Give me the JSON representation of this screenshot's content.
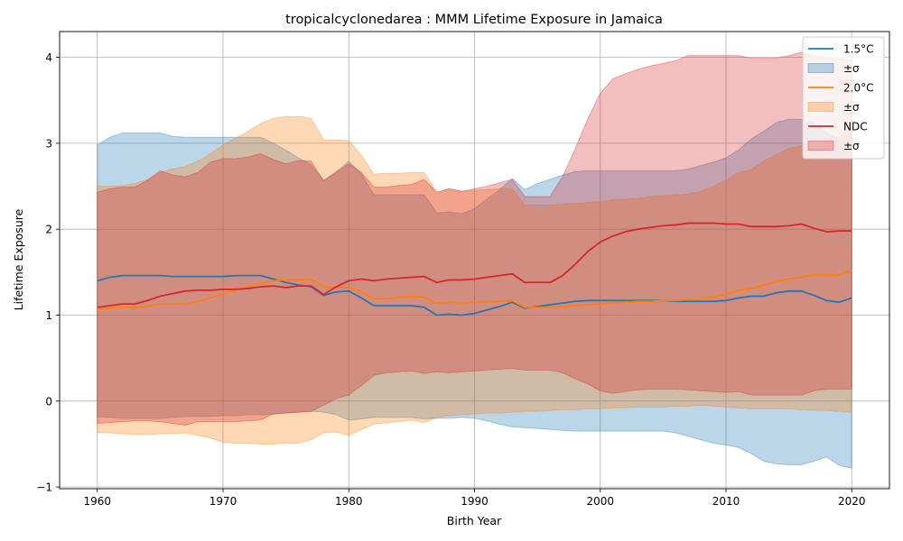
{
  "chart_data": {
    "type": "line",
    "title": "tropicalcyclonedarea : MMM Lifetime Exposure in Jamaica",
    "xlabel": "Birth Year",
    "ylabel": "Lifetime Exposure",
    "xlim": [
      1957,
      2023
    ],
    "ylim": [
      -1.02,
      4.3
    ],
    "xticks": [
      1960,
      1970,
      1980,
      1990,
      2000,
      2010,
      2020
    ],
    "yticks": [
      -1,
      0,
      1,
      2,
      3,
      4
    ],
    "grid": true,
    "legend_position": "top-right",
    "x": [
      1960,
      1961,
      1962,
      1963,
      1964,
      1965,
      1966,
      1967,
      1968,
      1969,
      1970,
      1971,
      1972,
      1973,
      1974,
      1975,
      1976,
      1977,
      1978,
      1979,
      1980,
      1981,
      1982,
      1983,
      1984,
      1985,
      1986,
      1987,
      1988,
      1989,
      1990,
      1991,
      1992,
      1993,
      1994,
      1995,
      1996,
      1997,
      1998,
      1999,
      2000,
      2001,
      2002,
      2003,
      2004,
      2005,
      2006,
      2007,
      2008,
      2009,
      2010,
      2011,
      2012,
      2013,
      2014,
      2015,
      2016,
      2017,
      2018,
      2019,
      2020
    ],
    "series": [
      {
        "name": "1.5°C",
        "band_label": "±σ",
        "color": "#1f77b4",
        "band_color": "#1f77b4",
        "values": [
          1.4,
          1.44,
          1.46,
          1.46,
          1.46,
          1.46,
          1.45,
          1.45,
          1.45,
          1.45,
          1.45,
          1.46,
          1.46,
          1.46,
          1.42,
          1.38,
          1.35,
          1.33,
          1.23,
          1.27,
          1.28,
          1.2,
          1.11,
          1.11,
          1.11,
          1.11,
          1.09,
          1.0,
          1.01,
          1.0,
          1.02,
          1.06,
          1.1,
          1.15,
          1.08,
          1.1,
          1.12,
          1.14,
          1.16,
          1.17,
          1.17,
          1.17,
          1.17,
          1.17,
          1.17,
          1.17,
          1.16,
          1.16,
          1.16,
          1.16,
          1.17,
          1.2,
          1.22,
          1.22,
          1.26,
          1.28,
          1.28,
          1.23,
          1.17,
          1.15,
          1.2
        ],
        "upper": [
          2.98,
          3.07,
          3.12,
          3.12,
          3.12,
          3.12,
          3.08,
          3.07,
          3.07,
          3.07,
          3.07,
          3.07,
          3.07,
          3.07,
          3.0,
          2.92,
          2.83,
          2.75,
          2.57,
          2.67,
          2.79,
          2.64,
          2.4,
          2.4,
          2.4,
          2.4,
          2.4,
          2.19,
          2.2,
          2.18,
          2.24,
          2.35,
          2.46,
          2.59,
          2.46,
          2.53,
          2.58,
          2.63,
          2.67,
          2.68,
          2.68,
          2.68,
          2.68,
          2.68,
          2.68,
          2.68,
          2.68,
          2.7,
          2.74,
          2.78,
          2.83,
          2.92,
          3.05,
          3.14,
          3.24,
          3.28,
          3.28,
          3.23,
          3.12,
          3.05,
          3.12
        ],
        "lower": [
          -0.18,
          -0.19,
          -0.2,
          -0.2,
          -0.2,
          -0.2,
          -0.19,
          -0.18,
          -0.18,
          -0.18,
          -0.17,
          -0.17,
          -0.16,
          -0.16,
          -0.15,
          -0.14,
          -0.13,
          -0.12,
          -0.13,
          -0.16,
          -0.22,
          -0.21,
          -0.19,
          -0.19,
          -0.19,
          -0.19,
          -0.21,
          -0.2,
          -0.2,
          -0.19,
          -0.2,
          -0.23,
          -0.27,
          -0.3,
          -0.31,
          -0.32,
          -0.33,
          -0.34,
          -0.35,
          -0.35,
          -0.35,
          -0.35,
          -0.35,
          -0.35,
          -0.35,
          -0.35,
          -0.37,
          -0.41,
          -0.45,
          -0.49,
          -0.51,
          -0.54,
          -0.61,
          -0.7,
          -0.73,
          -0.74,
          -0.74,
          -0.7,
          -0.65,
          -0.75,
          -0.78
        ]
      },
      {
        "name": "2.0°C",
        "band_label": "±σ",
        "color": "#ff7f0e",
        "band_color": "#ff7f0e",
        "values": [
          1.07,
          1.08,
          1.09,
          1.09,
          1.1,
          1.13,
          1.13,
          1.13,
          1.16,
          1.2,
          1.25,
          1.29,
          1.33,
          1.37,
          1.4,
          1.41,
          1.41,
          1.42,
          1.33,
          1.32,
          1.32,
          1.27,
          1.19,
          1.19,
          1.21,
          1.22,
          1.21,
          1.14,
          1.15,
          1.14,
          1.15,
          1.15,
          1.16,
          1.17,
          1.09,
          1.09,
          1.09,
          1.1,
          1.11,
          1.12,
          1.13,
          1.14,
          1.15,
          1.16,
          1.16,
          1.17,
          1.17,
          1.18,
          1.19,
          1.21,
          1.24,
          1.29,
          1.31,
          1.35,
          1.39,
          1.42,
          1.44,
          1.47,
          1.47,
          1.47,
          1.52
        ],
        "upper": [
          2.5,
          2.5,
          2.51,
          2.53,
          2.58,
          2.66,
          2.7,
          2.73,
          2.79,
          2.88,
          2.98,
          3.06,
          3.14,
          3.23,
          3.29,
          3.31,
          3.31,
          3.29,
          3.04,
          3.04,
          3.03,
          2.86,
          2.64,
          2.65,
          2.65,
          2.66,
          2.66,
          2.43,
          2.47,
          2.44,
          2.45,
          2.46,
          2.47,
          2.47,
          2.28,
          2.28,
          2.28,
          2.29,
          2.3,
          2.31,
          2.32,
          2.34,
          2.35,
          2.36,
          2.38,
          2.39,
          2.4,
          2.41,
          2.44,
          2.5,
          2.57,
          2.66,
          2.69,
          2.79,
          2.87,
          2.94,
          2.97,
          3.02,
          3.04,
          3.06,
          3.16
        ],
        "lower": [
          -0.37,
          -0.37,
          -0.38,
          -0.39,
          -0.39,
          -0.38,
          -0.38,
          -0.37,
          -0.4,
          -0.43,
          -0.48,
          -0.49,
          -0.49,
          -0.5,
          -0.5,
          -0.49,
          -0.49,
          -0.45,
          -0.37,
          -0.36,
          -0.4,
          -0.33,
          -0.27,
          -0.25,
          -0.24,
          -0.22,
          -0.25,
          -0.19,
          -0.17,
          -0.16,
          -0.15,
          -0.14,
          -0.14,
          -0.13,
          -0.12,
          -0.12,
          -0.11,
          -0.1,
          -0.1,
          -0.09,
          -0.09,
          -0.08,
          -0.08,
          -0.07,
          -0.07,
          -0.07,
          -0.06,
          -0.06,
          -0.05,
          -0.06,
          -0.07,
          -0.08,
          -0.09,
          -0.09,
          -0.09,
          -0.09,
          -0.1,
          -0.11,
          -0.11,
          -0.12,
          -0.13
        ]
      },
      {
        "name": "NDC",
        "band_label": "±σ",
        "color": "#d62728",
        "band_color": "#d62728",
        "values": [
          1.09,
          1.11,
          1.13,
          1.13,
          1.17,
          1.22,
          1.25,
          1.28,
          1.29,
          1.29,
          1.3,
          1.3,
          1.31,
          1.33,
          1.34,
          1.32,
          1.34,
          1.34,
          1.24,
          1.33,
          1.4,
          1.42,
          1.4,
          1.42,
          1.43,
          1.44,
          1.45,
          1.38,
          1.41,
          1.41,
          1.42,
          1.44,
          1.46,
          1.48,
          1.38,
          1.38,
          1.38,
          1.46,
          1.59,
          1.74,
          1.85,
          1.92,
          1.97,
          2.0,
          2.02,
          2.04,
          2.05,
          2.07,
          2.07,
          2.07,
          2.06,
          2.06,
          2.03,
          2.03,
          2.03,
          2.04,
          2.06,
          2.01,
          1.97,
          1.98,
          1.98
        ],
        "upper": [
          2.43,
          2.47,
          2.49,
          2.49,
          2.57,
          2.68,
          2.63,
          2.61,
          2.66,
          2.78,
          2.82,
          2.82,
          2.84,
          2.88,
          2.81,
          2.76,
          2.8,
          2.79,
          2.56,
          2.66,
          2.76,
          2.66,
          2.49,
          2.49,
          2.51,
          2.52,
          2.58,
          2.43,
          2.47,
          2.44,
          2.47,
          2.5,
          2.54,
          2.58,
          2.38,
          2.38,
          2.38,
          2.61,
          2.93,
          3.28,
          3.58,
          3.75,
          3.81,
          3.86,
          3.9,
          3.93,
          3.96,
          4.02,
          4.02,
          4.02,
          4.02,
          4.02,
          3.99,
          3.99,
          3.99,
          4.02,
          4.06,
          4.02,
          3.99,
          3.98,
          3.98
        ],
        "lower": [
          -0.26,
          -0.25,
          -0.24,
          -0.23,
          -0.23,
          -0.24,
          -0.26,
          -0.28,
          -0.24,
          -0.24,
          -0.24,
          -0.24,
          -0.23,
          -0.22,
          -0.15,
          -0.14,
          -0.13,
          -0.12,
          -0.05,
          0.03,
          0.07,
          0.18,
          0.3,
          0.33,
          0.34,
          0.35,
          0.32,
          0.34,
          0.33,
          0.34,
          0.35,
          0.36,
          0.37,
          0.38,
          0.36,
          0.36,
          0.36,
          0.33,
          0.26,
          0.2,
          0.12,
          0.09,
          0.11,
          0.13,
          0.14,
          0.14,
          0.14,
          0.13,
          0.12,
          0.11,
          0.1,
          0.11,
          0.07,
          0.07,
          0.07,
          0.07,
          0.07,
          0.12,
          0.14,
          0.14,
          0.14
        ]
      }
    ]
  }
}
